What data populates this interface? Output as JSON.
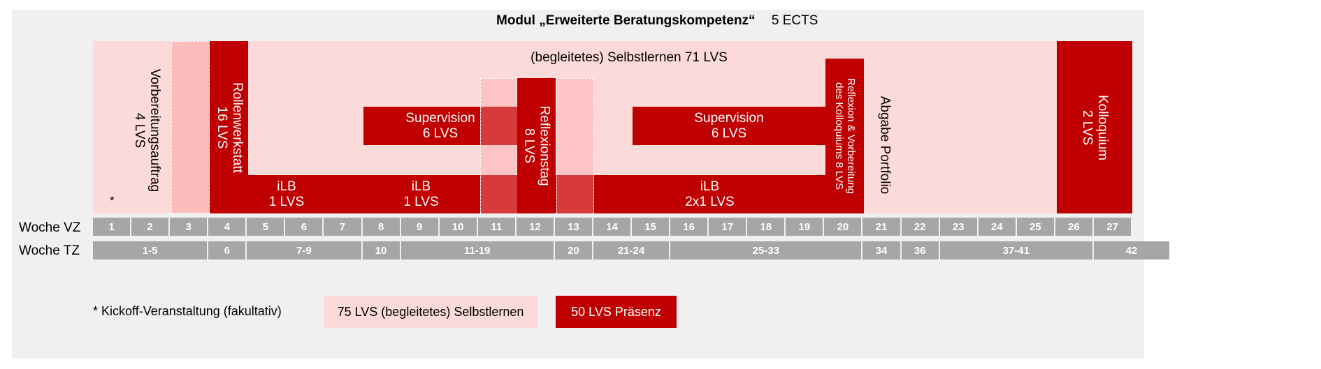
{
  "title": "Modul „Erweiterte Beratungskompetenz“",
  "ects": "5 ECTS",
  "blocks": {
    "selbstlernen": "(begleitetes) Selbstlernen 71 LVS",
    "vorbereitung_1": "Vorbereitungsauftrag",
    "vorbereitung_2": "4 LVS",
    "asterisk": "*",
    "rollenwerkstatt_1": "Rollenwerkstatt",
    "rollenwerkstatt_2": "16 LVS",
    "supervision1_1": "Supervision",
    "supervision1_2": "6 LVS",
    "reflexionstag_1": "Reflexionstag",
    "reflexionstag_2": "8 LVS",
    "supervision2_1": "Supervision",
    "supervision2_2": "6 LVS",
    "ilb1_1": "iLB",
    "ilb1_2": "1 LVS",
    "ilb2_1": "iLB",
    "ilb2_2": "1 LVS",
    "ilb3_1": "iLB",
    "ilb3_2": "2x1 LVS",
    "reflexion_vb_1": "Reflexion & Vorbereitung",
    "reflexion_vb_2": "des Kolloquiums  8 LVS",
    "abgabe": "Abgabe Portfolio",
    "kolloquium_1": "Kolloquium",
    "kolloquium_2": "2 LVS"
  },
  "rows": {
    "vz_label": "Woche VZ",
    "tz_label": "Woche TZ",
    "vz_weeks": [
      "1",
      "2",
      "3",
      "4",
      "5",
      "6",
      "7",
      "8",
      "9",
      "10",
      "11",
      "12",
      "13",
      "14",
      "15",
      "16",
      "17",
      "18",
      "19",
      "20",
      "21",
      "22",
      "23",
      "24",
      "25",
      "26",
      "27"
    ],
    "tz_weeks": [
      {
        "label": "1-5",
        "span": 3
      },
      {
        "label": "6",
        "span": 1
      },
      {
        "label": "7-9",
        "span": 3
      },
      {
        "label": "10",
        "span": 1
      },
      {
        "label": "11-19",
        "span": 4
      },
      {
        "label": "20",
        "span": 1
      },
      {
        "label": "21-24",
        "span": 2
      },
      {
        "label": "25-33",
        "span": 5
      },
      {
        "label": "34",
        "span": 1
      },
      {
        "label": "36",
        "span": 1
      },
      {
        "label": "37-41",
        "span": 4
      },
      {
        "label": "42",
        "span": 2
      }
    ]
  },
  "legend": {
    "note": "* Kickoff-Veranstaltung (fakultativ)",
    "light": "75 LVS (begleitetes) Selbstlernen",
    "dark": "50 LVS Präsenz"
  },
  "colors": {
    "dark": "#c00000",
    "light_bg": "#fddada",
    "medium": "#fbbcbc",
    "cell": "#a6a6a6"
  }
}
